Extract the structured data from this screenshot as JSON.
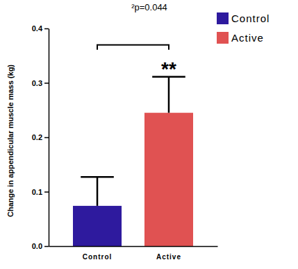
{
  "chart_data": {
    "type": "bar",
    "title": "²p=0.044",
    "y_label": "Change in appendicular muscle mass (kg)",
    "categories": [
      "Control",
      "Active"
    ],
    "values": [
      0.074,
      0.245
    ],
    "errors": [
      0.053,
      0.066
    ],
    "colors": [
      "#2e1a9e",
      "#e05252"
    ],
    "annotations": [
      "**"
    ],
    "legend": "upper right",
    "ylim": [
      0,
      0.4
    ],
    "yticks": [
      {
        "value": 0,
        "label": "0.0"
      },
      0.1,
      0.2,
      0.3,
      0.4
    ],
    "grid": false
  }
}
